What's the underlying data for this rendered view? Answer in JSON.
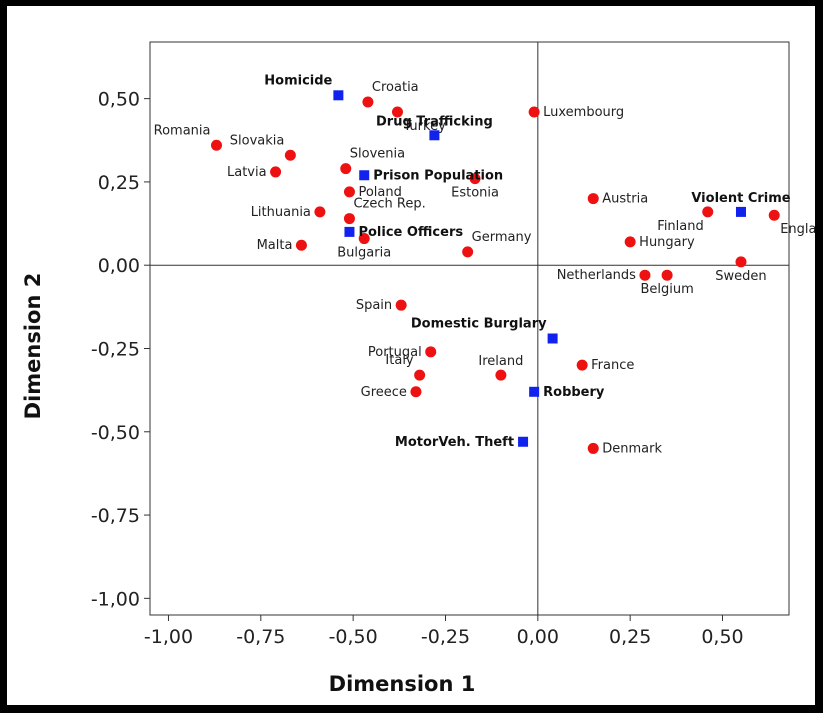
{
  "chart_data": {
    "type": "scatter",
    "title": "",
    "xlabel": "Dimension 1",
    "ylabel": "Dimension 2",
    "xlim": [
      -1.05,
      0.68
    ],
    "ylim": [
      -1.05,
      0.67
    ],
    "x_ticks": [
      -1.0,
      -0.75,
      -0.5,
      -0.25,
      0.0,
      0.25,
      0.5
    ],
    "x_tick_labels": [
      "-1,00",
      "-0,75",
      "-0,50",
      "-0,25",
      "0,00",
      "0,25",
      "0,50"
    ],
    "y_ticks": [
      0.5,
      0.25,
      0.0,
      -0.25,
      -0.5,
      -0.75,
      -1.0
    ],
    "y_tick_labels": [
      "0,50",
      "0,25",
      "0,00",
      "-0,25",
      "-0,50",
      "-0,75",
      "-1,00"
    ],
    "grid": false,
    "reference_lines": {
      "x": 0,
      "y": 0
    },
    "series": [
      {
        "marker": "circle",
        "color": "#ee1111",
        "points": [
          {
            "label": "Croatia",
            "x": -0.46,
            "y": 0.49,
            "label_pos": "upper-right"
          },
          {
            "label": "Turkey",
            "x": -0.38,
            "y": 0.46,
            "label_pos": "lower-right"
          },
          {
            "label": "Luxembourg",
            "x": -0.01,
            "y": 0.46,
            "label_pos": "right"
          },
          {
            "label": "Romania",
            "x": -0.87,
            "y": 0.36,
            "label_pos": "upper-left"
          },
          {
            "label": "Slovakia",
            "x": -0.67,
            "y": 0.33,
            "label_pos": "upper-left"
          },
          {
            "label": "Slovenia",
            "x": -0.52,
            "y": 0.29,
            "label_pos": "upper-right"
          },
          {
            "label": "Latvia",
            "x": -0.71,
            "y": 0.28,
            "label_pos": "left"
          },
          {
            "label": "Poland",
            "x": -0.51,
            "y": 0.22,
            "label_pos": "right"
          },
          {
            "label": "Estonia",
            "x": -0.17,
            "y": 0.26,
            "label_pos": "below"
          },
          {
            "label": "Lithuania",
            "x": -0.59,
            "y": 0.16,
            "label_pos": "left"
          },
          {
            "label": "Czech Rep.",
            "x": -0.51,
            "y": 0.14,
            "label_pos": "upper-right"
          },
          {
            "label": "Malta",
            "x": -0.64,
            "y": 0.06,
            "label_pos": "left"
          },
          {
            "label": "Bulgaria",
            "x": -0.47,
            "y": 0.08,
            "label_pos": "below"
          },
          {
            "label": "Germany",
            "x": -0.19,
            "y": 0.04,
            "label_pos": "upper-right"
          },
          {
            "label": "Austria",
            "x": 0.15,
            "y": 0.2,
            "label_pos": "right"
          },
          {
            "label": "Finland",
            "x": 0.46,
            "y": 0.16,
            "label_pos": "lower-left"
          },
          {
            "label": "England",
            "x": 0.64,
            "y": 0.15,
            "label_pos": "lower-right"
          },
          {
            "label": "Hungary",
            "x": 0.25,
            "y": 0.07,
            "label_pos": "right"
          },
          {
            "label": "Netherlands",
            "x": 0.29,
            "y": -0.03,
            "label_pos": "left"
          },
          {
            "label": "Belgium",
            "x": 0.35,
            "y": -0.03,
            "label_pos": "below"
          },
          {
            "label": "Sweden",
            "x": 0.55,
            "y": 0.01,
            "label_pos": "below"
          },
          {
            "label": "Spain",
            "x": -0.37,
            "y": -0.12,
            "label_pos": "left"
          },
          {
            "label": "Portugal",
            "x": -0.29,
            "y": -0.26,
            "label_pos": "left"
          },
          {
            "label": "Italy",
            "x": -0.32,
            "y": -0.33,
            "label_pos": "upper-left"
          },
          {
            "label": "Greece",
            "x": -0.33,
            "y": -0.38,
            "label_pos": "left"
          },
          {
            "label": "Ireland",
            "x": -0.1,
            "y": -0.33,
            "label_pos": "above"
          },
          {
            "label": "France",
            "x": 0.12,
            "y": -0.3,
            "label_pos": "right"
          },
          {
            "label": "Denmark",
            "x": 0.15,
            "y": -0.55,
            "label_pos": "right"
          }
        ]
      },
      {
        "marker": "square",
        "color": "#1122ee",
        "points": [
          {
            "label": "Homicide",
            "x": -0.54,
            "y": 0.51,
            "label_pos": "upper-left"
          },
          {
            "label": "Drug Trafficking",
            "x": -0.28,
            "y": 0.39,
            "label_pos": "above"
          },
          {
            "label": "Prison Population",
            "x": -0.47,
            "y": 0.27,
            "label_pos": "right"
          },
          {
            "label": "Police Officers",
            "x": -0.51,
            "y": 0.1,
            "label_pos": "right"
          },
          {
            "label": "Violent Crime",
            "x": 0.55,
            "y": 0.16,
            "label_pos": "above"
          },
          {
            "label": "Domestic Burglary",
            "x": 0.04,
            "y": -0.22,
            "label_pos": "upper-left"
          },
          {
            "label": "Robbery",
            "x": -0.01,
            "y": -0.38,
            "label_pos": "right"
          },
          {
            "label": "MotorVeh. Theft",
            "x": -0.04,
            "y": -0.53,
            "label_pos": "left"
          }
        ]
      }
    ]
  }
}
